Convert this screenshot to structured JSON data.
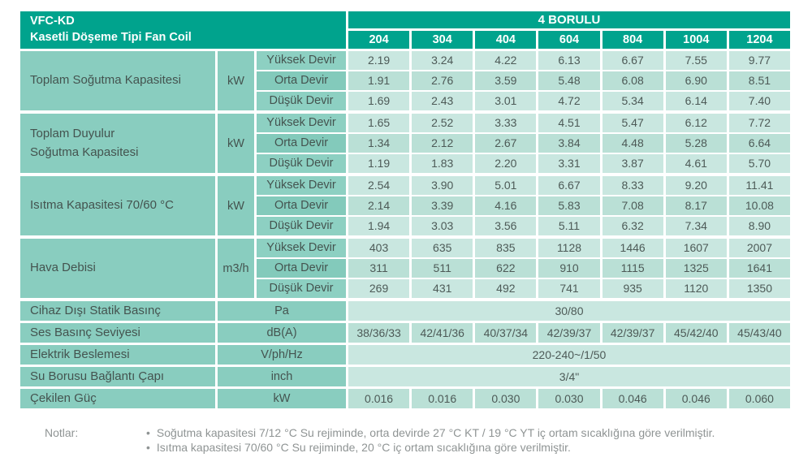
{
  "header": {
    "product_code": "VFC-KD",
    "product_name": "Kasetli Döşeme Tipi Fan Coil",
    "pipe_system": "4 BORULU",
    "models": [
      "204",
      "304",
      "404",
      "604",
      "804",
      "1004",
      "1204"
    ]
  },
  "speed_labels": [
    "Yüksek Devir",
    "Orta Devir",
    "Düşük Devir"
  ],
  "groups": [
    {
      "label": "Toplam Soğutma Kapasitesi",
      "label2": "",
      "unit": "kW",
      "rows": [
        [
          "2.19",
          "3.24",
          "4.22",
          "6.13",
          "6.67",
          "7.55",
          "9.77"
        ],
        [
          "1.91",
          "2.76",
          "3.59",
          "5.48",
          "6.08",
          "6.90",
          "8.51"
        ],
        [
          "1.69",
          "2.43",
          "3.01",
          "4.72",
          "5.34",
          "6.14",
          "7.40"
        ]
      ]
    },
    {
      "label": "Toplam Duyulur",
      "label2": "Soğutma Kapasitesi",
      "unit": "kW",
      "rows": [
        [
          "1.65",
          "2.52",
          "3.33",
          "4.51",
          "5.47",
          "6.12",
          "7.72"
        ],
        [
          "1.34",
          "2.12",
          "2.67",
          "3.84",
          "4.48",
          "5.28",
          "6.64"
        ],
        [
          "1.19",
          "1.83",
          "2.20",
          "3.31",
          "3.87",
          "4.61",
          "5.70"
        ]
      ]
    },
    {
      "label": "Isıtma Kapasitesi  70/60 °C",
      "label2": "",
      "unit": "kW",
      "rows": [
        [
          "2.54",
          "3.90",
          "5.01",
          "6.67",
          "8.33",
          "9.20",
          "11.41"
        ],
        [
          "2.14",
          "3.39",
          "4.16",
          "5.83",
          "7.08",
          "8.17",
          "10.08"
        ],
        [
          "1.94",
          "3.03",
          "3.56",
          "5.11",
          "6.32",
          "7.34",
          "8.90"
        ]
      ]
    },
    {
      "label": "Hava Debisi",
      "label2": "",
      "unit": "m3/h",
      "rows": [
        [
          "403",
          "635",
          "835",
          "1128",
          "1446",
          "1607",
          "2007"
        ],
        [
          "311",
          "511",
          "622",
          "910",
          "1115",
          "1325",
          "1641"
        ],
        [
          "269",
          "431",
          "492",
          "741",
          "935",
          "1120",
          "1350"
        ]
      ]
    }
  ],
  "single_rows": [
    {
      "label": "Cihaz Dışı Statik Basınç",
      "unit": "Pa",
      "value": "30/80"
    },
    {
      "label": "Ses Basınç Seviyesi",
      "unit": "dB(A)",
      "values": [
        "38/36/33",
        "42/41/36",
        "40/37/34",
        "42/39/37",
        "42/39/37",
        "45/42/40",
        "45/43/40"
      ]
    },
    {
      "label": "Elektrik Beslemesi",
      "unit": "V/ph/Hz",
      "value": "220-240~/1/50"
    },
    {
      "label": "Su Borusu Bağlantı Çapı",
      "unit": "inch",
      "value": "3/4\""
    },
    {
      "label": "Çekilen Güç",
      "unit": "kW",
      "values": [
        "0.016",
        "0.016",
        "0.030",
        "0.030",
        "0.046",
        "0.046",
        "0.060"
      ]
    }
  ],
  "notes": {
    "label": "Notlar:",
    "items": [
      "Soğutma kapasitesi 7/12 °C Su rejiminde, orta devirde 27 °C KT / 19 °C YT iç ortam sıcaklığına göre verilmiştir.",
      "Isıtma kapasitesi 70/60 °C Su rejiminde, 20 °C iç ortam sıcaklığına göre verilmiştir."
    ]
  },
  "colors": {
    "accent_teal": "#00a38d",
    "label_cell": "#89cdbf",
    "speed_cell": "#8dd0c2",
    "speed_cell_alt": "#83cabb",
    "value_row_light": "#c9e7e0",
    "value_row_dark": "#bae0d6",
    "text_dark": "#44534f",
    "notes_gray": "#8f9494"
  }
}
